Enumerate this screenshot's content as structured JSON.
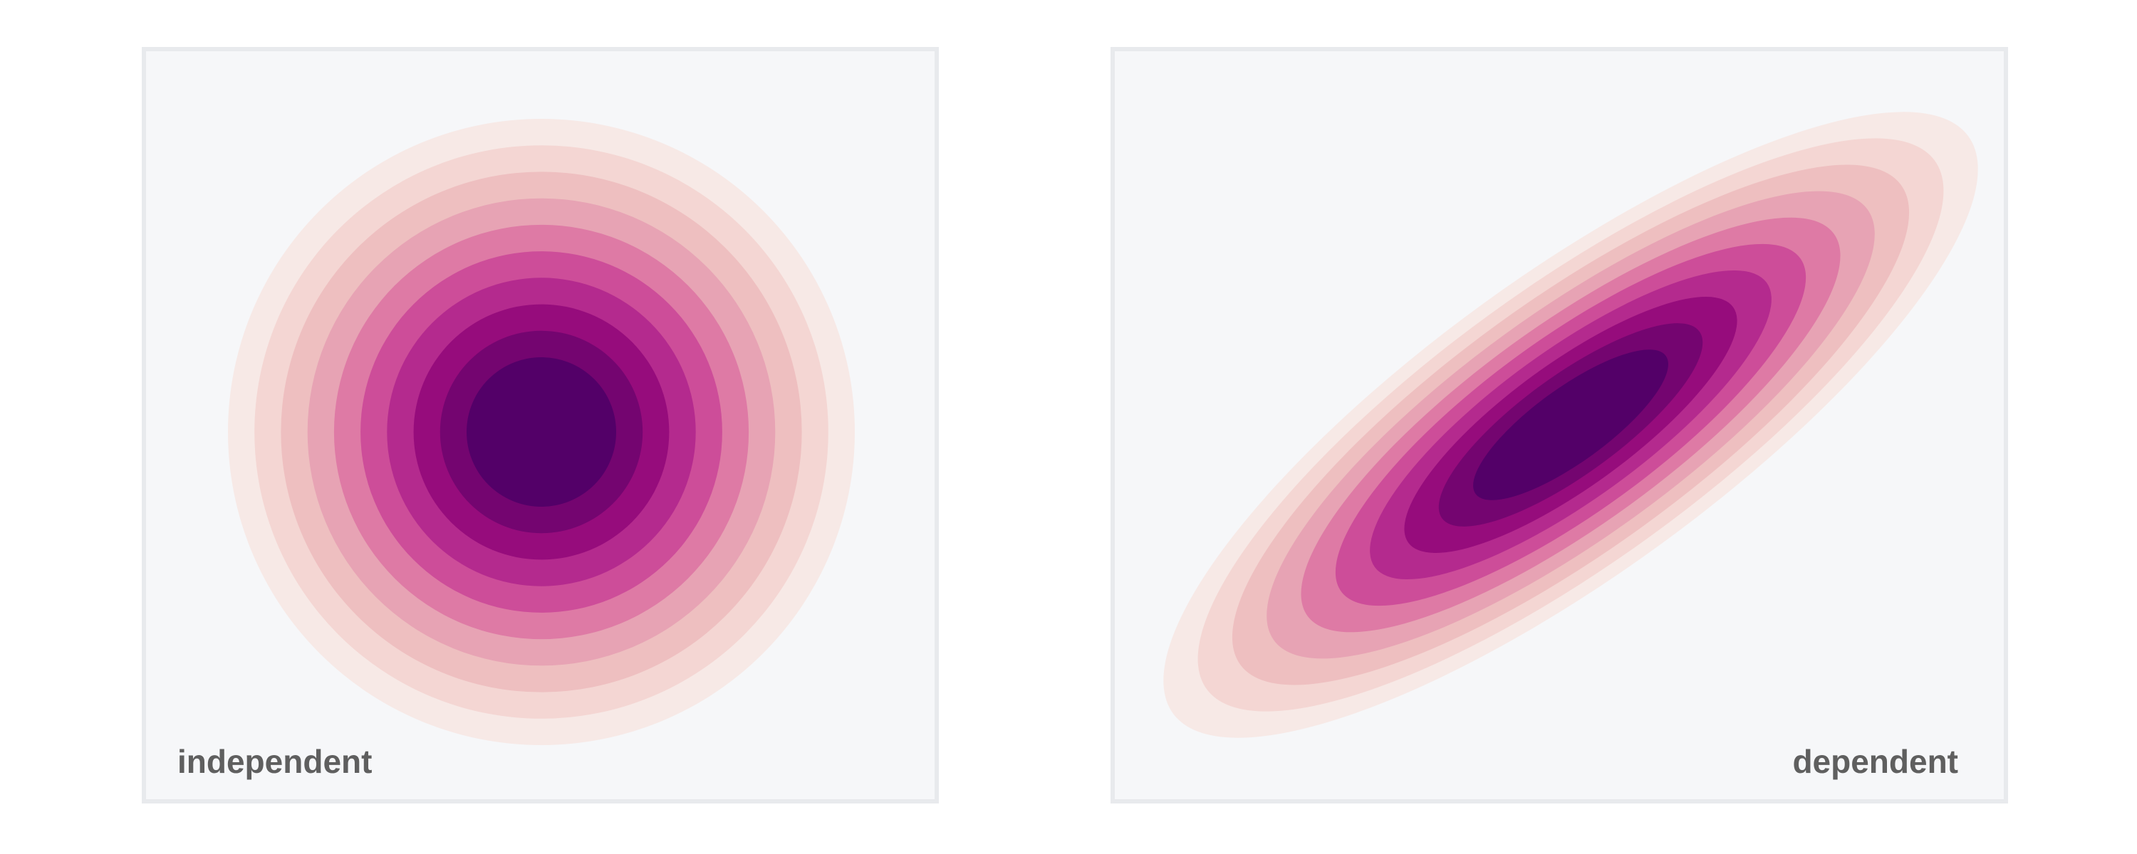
{
  "panels": [
    {
      "id": "independent",
      "label": "independent",
      "background": "#f6f7f9",
      "correlation": 0
    },
    {
      "id": "dependent",
      "label": "dependent",
      "background": "#f6f7f9",
      "correlation": 0.9
    }
  ],
  "palette": {
    "level_colors": [
      "#f7e9e6",
      "#f4d6d3",
      "#eebfc0",
      "#e7a3b4",
      "#de7aa5",
      "#cd4d99",
      "#b42a8e",
      "#960c7c",
      "#740570",
      "#530068"
    ],
    "frame_border": "#e8eaed",
    "label_color": "#5f5f5f"
  }
}
